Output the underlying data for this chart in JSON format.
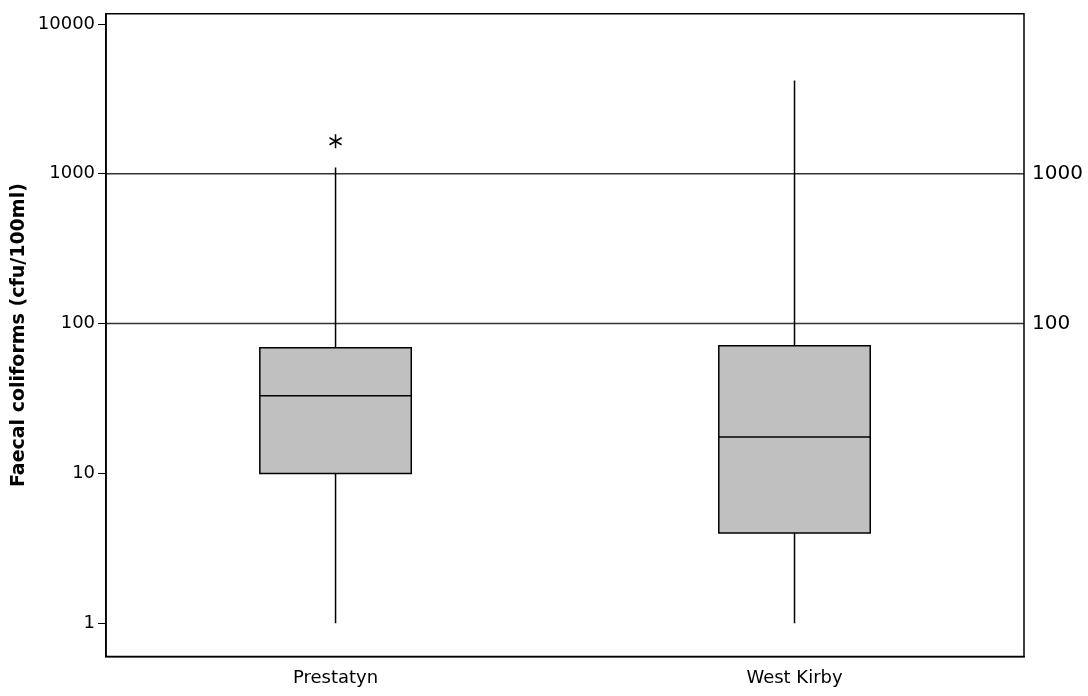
{
  "chart_data": {
    "type": "box",
    "ylabel": "Faecal coliforms (cfu/100ml)",
    "categories": [
      "Prestatyn",
      "West Kirby"
    ],
    "boxes": [
      {
        "low": 1,
        "q1": 10,
        "median": 33,
        "q3": 69,
        "high": 1100,
        "outliers": [
          1650
        ]
      },
      {
        "low": 1,
        "q1": 4,
        "median": 17.5,
        "q3": 71,
        "high": 4200
      }
    ],
    "color": "#c0c0c0",
    "log": true,
    "ylim": [
      0.63,
      11700
    ],
    "yticks": [
      1,
      10,
      100,
      1000,
      10000
    ],
    "ref_lines": [
      {
        "axis": "y",
        "value": 1000,
        "label": "1000"
      },
      {
        "axis": "y",
        "value": 100,
        "label": "100"
      }
    ],
    "grid": false,
    "legend": false
  }
}
